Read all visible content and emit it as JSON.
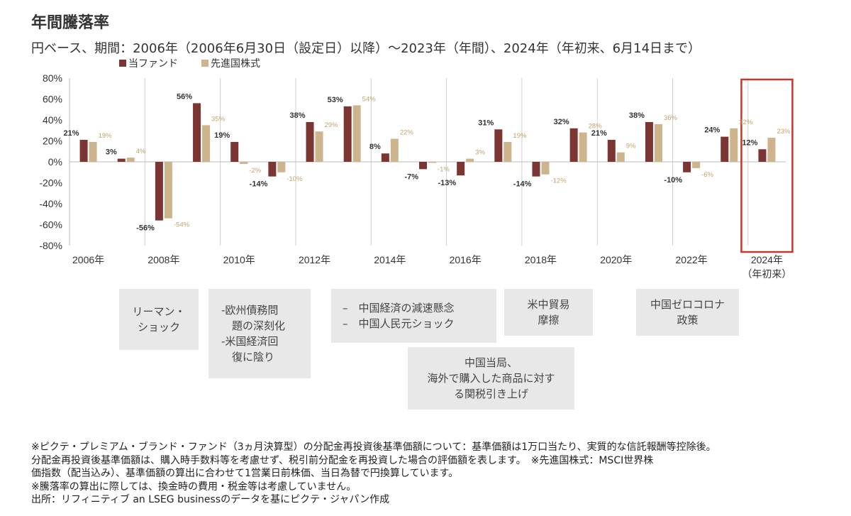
{
  "title": "年間騰落率",
  "subtitle": "円ベース、期間：2006年（2006年6月30日（設定日）以降）〜2023年（年間）、2024年（年初来、6月14日まで）",
  "colors": {
    "fund": "#7b3532",
    "benchmark": "#cdb48c",
    "highlight": "#c0392b",
    "note_bg": "#e8e8e8"
  },
  "chart_data": {
    "type": "bar",
    "categories": [
      "2006",
      "2007",
      "2008",
      "2009",
      "2010",
      "2011",
      "2012",
      "2013",
      "2014",
      "2015",
      "2016",
      "2017",
      "2018",
      "2019",
      "2020",
      "2021",
      "2022",
      "2023",
      "2024"
    ],
    "x_tick_labels": [
      "2006年",
      "2008年",
      "2010年",
      "2012年",
      "2014年",
      "2016年",
      "2018年",
      "2020年",
      "2022年",
      "2024年"
    ],
    "x_tick_sub_label": "（年初来）",
    "series": [
      {
        "name": "当ファンド",
        "values": [
          21,
          3,
          -56,
          56,
          19,
          -14,
          38,
          53,
          8,
          -7,
          -13,
          31,
          -14,
          32,
          21,
          38,
          -10,
          24,
          12
        ],
        "labels": [
          "21%",
          "3%",
          "-56%",
          "56%",
          "19%",
          "-14%",
          "38%",
          "53%",
          "8%",
          "-7%",
          "-13%",
          "31%",
          "-14%",
          "32%",
          "21%",
          "38%",
          "-10%",
          "24%",
          "12%"
        ]
      },
      {
        "name": "先進国株式",
        "values": [
          19,
          4,
          -54,
          35,
          -2,
          -10,
          29,
          54,
          22,
          -1,
          3,
          19,
          -12,
          28,
          9,
          36,
          -6,
          32,
          23
        ],
        "labels": [
          "19%",
          "4%",
          "-54%",
          "35%",
          "-2%",
          "-10%",
          "29%",
          "54%",
          "22%",
          "-1%",
          "3%",
          "19%",
          "-12%",
          "28%",
          "9%",
          "36%",
          "-6%",
          "32%",
          "23%"
        ]
      }
    ],
    "y_ticks": [
      "80%",
      "60%",
      "40%",
      "20%",
      "0%",
      "-20%",
      "-40%",
      "-60%",
      "-80%"
    ],
    "ylim": [
      -80,
      80
    ],
    "legend_position": "top-left",
    "highlight_category": "2024"
  },
  "notes": {
    "lehman": [
      "リーマン・",
      "ショック"
    ],
    "euro": [
      "-欧州債務問",
      "　題の深刻化",
      "-米国経済回",
      "　復に陰り"
    ],
    "china1": [
      "–　中国経済の減速懸念",
      "–　中国人民元ショック"
    ],
    "tariff": [
      "中国当局、",
      "海外で購入した商品に対す",
      "る関税引き上げ"
    ],
    "trade": [
      "米中貿易",
      "摩擦"
    ],
    "zerocovid": [
      "中国ゼロコロナ",
      "政策"
    ]
  },
  "footnotes": [
    "※ピクテ・プレミアム・ブランド・ファンド（3ヵ月決算型）の分配金再投資後基準価額について：基準価額は1万口当たり、実質的な信託報酬等控除後。",
    "分配金再投資後基準価額は、購入時手数料等を考慮せず、税引前分配金を再投資した場合の評価額を表します。　※先進国株式：MSCI世界株",
    "価指数（配当込み）、基準価額の算出に合わせて1営業日前株価、当日為替で円換算しています。",
    "※騰落率の算出に際しては、換金時の費用・税金等は考慮していません。",
    "出所：リフィニティブ an LSEG businessのデータを基にピクテ・ジャパン作成"
  ]
}
